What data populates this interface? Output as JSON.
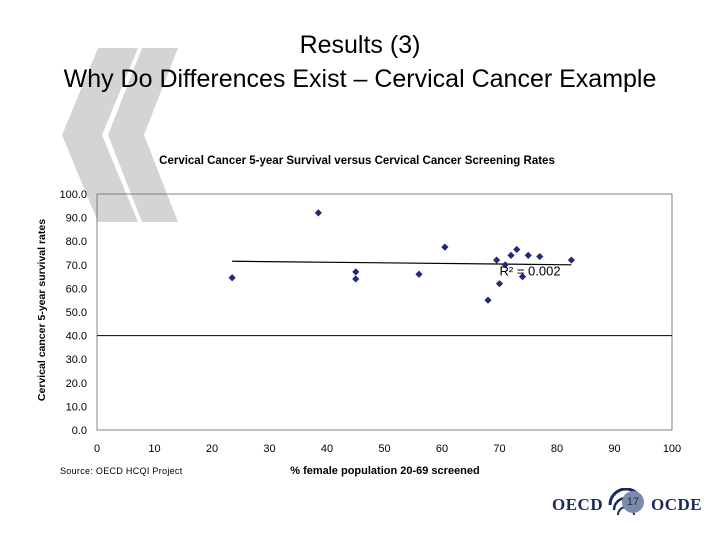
{
  "slide": {
    "title_line1": "Results (3)",
    "title_line2": "Why Do Differences Exist – Cervical Cancer Example",
    "source": "Source: OECD HCQI Project",
    "page_number": "17",
    "logo_left": "OECD",
    "logo_right": "OCDE"
  },
  "chart_data": {
    "type": "scatter",
    "title": "Cervical Cancer 5-year Survival versus Cervical Cancer Screening Rates",
    "xlabel": "% female population 20-69 screened",
    "ylabel": "Cervical cancer 5-year survival rates",
    "xlim": [
      0,
      100
    ],
    "ylim": [
      0,
      100
    ],
    "x_ticks": [
      "0",
      "10",
      "20",
      "30",
      "40",
      "50",
      "60",
      "70",
      "80",
      "90",
      "100"
    ],
    "y_ticks": [
      "0.0",
      "10.0",
      "20.0",
      "30.0",
      "40.0",
      "50.0",
      "60.0",
      "70.0",
      "80.0",
      "90.0",
      "100.0"
    ],
    "grid": false,
    "series": [
      {
        "points": [
          {
            "x": 23.5,
            "y": 64.5
          },
          {
            "x": 38.5,
            "y": 92.0
          },
          {
            "x": 45.0,
            "y": 67.0
          },
          {
            "x": 45.0,
            "y": 64.0
          },
          {
            "x": 56.0,
            "y": 66.0
          },
          {
            "x": 60.5,
            "y": 77.5
          },
          {
            "x": 68.0,
            "y": 55.0
          },
          {
            "x": 69.5,
            "y": 72.0
          },
          {
            "x": 70.0,
            "y": 62.0
          },
          {
            "x": 71.0,
            "y": 70.0
          },
          {
            "x": 72.0,
            "y": 74.0
          },
          {
            "x": 73.0,
            "y": 76.5
          },
          {
            "x": 74.0,
            "y": 65.0
          },
          {
            "x": 75.0,
            "y": 74.0
          },
          {
            "x": 77.0,
            "y": 73.5
          },
          {
            "x": 82.5,
            "y": 72.0
          }
        ],
        "marker_color": "#1f2a78"
      }
    ],
    "trendline": {
      "x": [
        23.5,
        82.5
      ],
      "y": [
        71.5,
        70.0
      ]
    },
    "reference_line": {
      "y": 40.0
    },
    "annotation": {
      "text": "R² = 0.002",
      "x": 70.0,
      "y": 65.5
    },
    "colors": {
      "markers": "#1f2a78",
      "lines": "#000000"
    }
  }
}
